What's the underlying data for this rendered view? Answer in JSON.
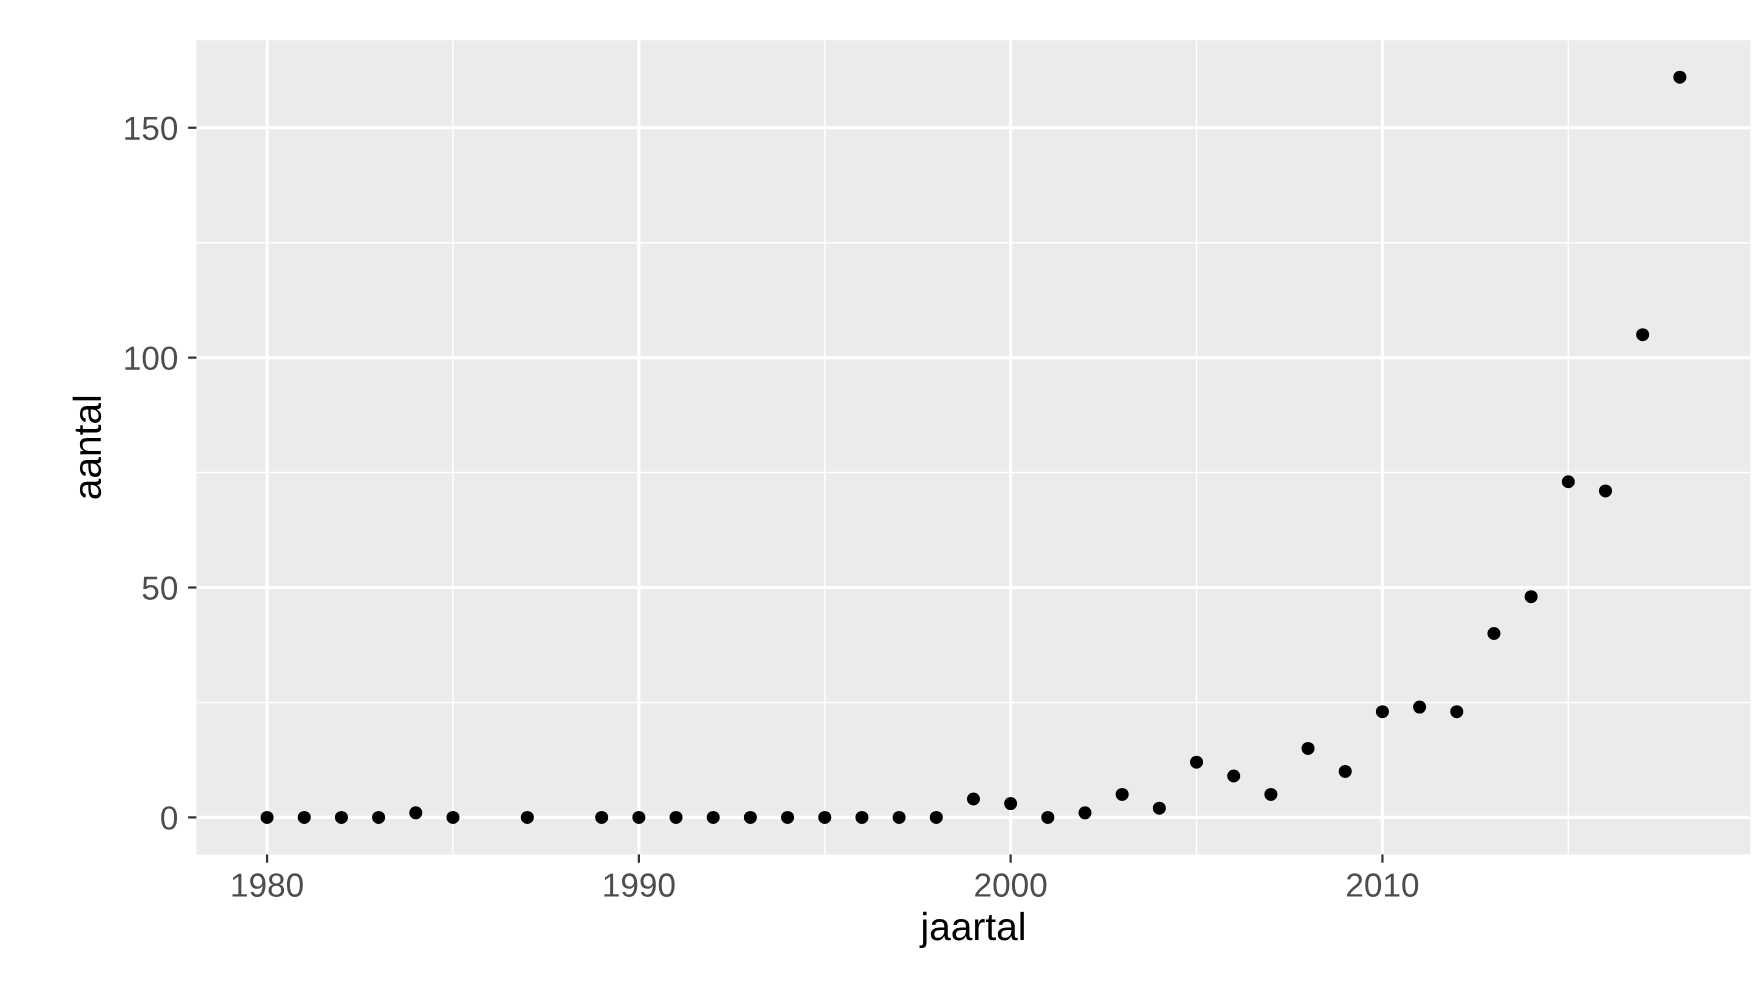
{
  "chart_data": {
    "type": "scatter",
    "xlabel": "jaartal",
    "ylabel": "aantal",
    "x": [
      1980,
      1981,
      1982,
      1983,
      1984,
      1985,
      1987,
      1989,
      1990,
      1991,
      1992,
      1993,
      1994,
      1995,
      1996,
      1997,
      1998,
      1999,
      2000,
      2001,
      2002,
      2003,
      2004,
      2005,
      2006,
      2007,
      2008,
      2009,
      2010,
      2011,
      2012,
      2013,
      2014,
      2015,
      2016,
      2017,
      2018
    ],
    "values": [
      0,
      0,
      0,
      0,
      1,
      0,
      0,
      0,
      0,
      0,
      0,
      0,
      0,
      0,
      0,
      0,
      0,
      4,
      3,
      0,
      1,
      5,
      2,
      12,
      9,
      5,
      15,
      10,
      23,
      24,
      23,
      40,
      48,
      73,
      71,
      105,
      161
    ],
    "color": "#000000",
    "marker": "circle",
    "xlim": [
      1978.1,
      2019.9
    ],
    "xticks": [
      1980,
      1990,
      2000,
      2010
    ],
    "ylim": [
      -8.05,
      169.05
    ],
    "yticks": [
      0,
      50,
      100,
      150
    ],
    "grid": true
  }
}
